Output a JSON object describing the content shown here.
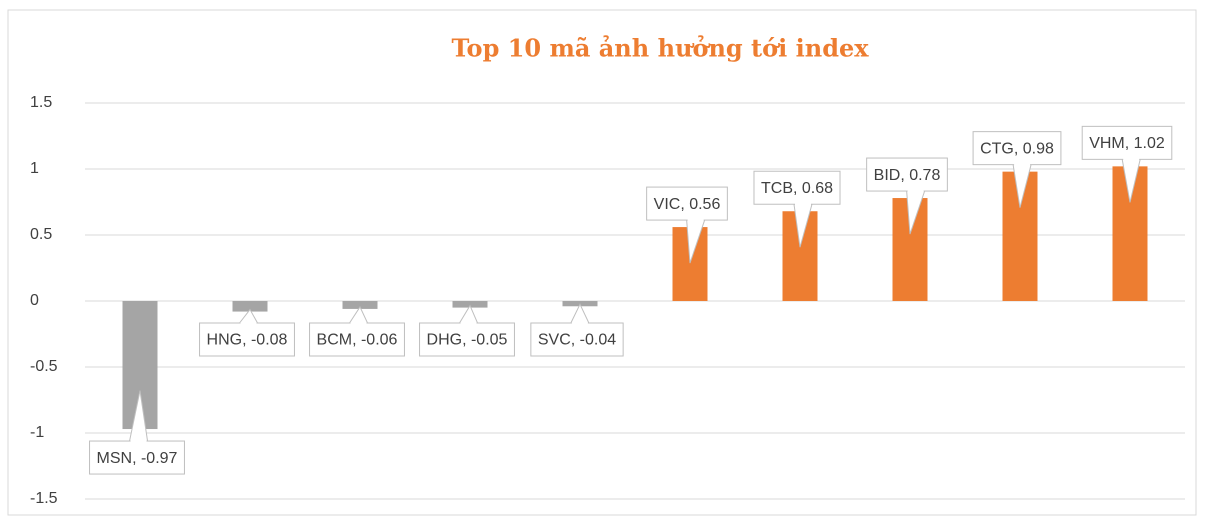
{
  "chart_data": {
    "type": "bar",
    "title": "Top 10 mã ảnh hưởng tới index",
    "categories": [
      "MSN",
      "HNG",
      "BCM",
      "DHG",
      "SVC",
      "VIC",
      "TCB",
      "BID",
      "CTG",
      "VHM"
    ],
    "values": [
      -0.97,
      -0.08,
      -0.06,
      -0.05,
      -0.04,
      0.56,
      0.68,
      0.78,
      0.98,
      1.02
    ],
    "value_labels": [
      "MSN, -0.97",
      "HNG, -0.08",
      "BCM, -0.06",
      "DHG, -0.05",
      "SVC, -0.04",
      "VIC, 0.56",
      "TCB, 0.68",
      "BID, 0.78",
      "CTG, 0.98",
      "VHM, 1.02"
    ],
    "colors": [
      "#a5a5a5",
      "#a5a5a5",
      "#a5a5a5",
      "#a5a5a5",
      "#a5a5a5",
      "#ed7d31",
      "#ed7d31",
      "#ed7d31",
      "#ed7d31",
      "#ed7d31"
    ],
    "ylim": [
      -1.5,
      1.5
    ],
    "yticks": [
      -1.5,
      -1,
      -0.5,
      0,
      0.5,
      1,
      1.5
    ],
    "grid": true
  }
}
